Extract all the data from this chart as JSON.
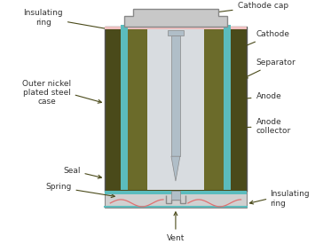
{
  "bg_color": "#ffffff",
  "label_color": "#333333",
  "arrow_color": "#4a4a1a",
  "labels": {
    "cathode_cap": "Cathode cap",
    "insulating_ring_top": "Insulating\nring",
    "cathode": "Cathode",
    "separator": "Separator",
    "anode": "Anode",
    "anode_collector": "Anode\ncollector",
    "outer_case": "Outer nickel\nplated steel\ncase",
    "seal": "Seal",
    "spring": "Spring",
    "vent": "Vent",
    "insulating_ring_bot": "Insulating\nring"
  },
  "colors": {
    "outer_case": "#4a4a1a",
    "separator": "#5bbcbd",
    "anode_fill": "#c8d4dc",
    "anode_collector": "#b0bec8",
    "cathode_body": "#6b6b2a",
    "cap_gray": "#c8c8c8",
    "bottom_plate": "#d0d0d0",
    "spring_color": "#e07070",
    "insulating_pink": "#f0c0c0",
    "inner_light": "#d8dce0",
    "edge_gray": "#888888",
    "outer_edge": "#555555"
  }
}
